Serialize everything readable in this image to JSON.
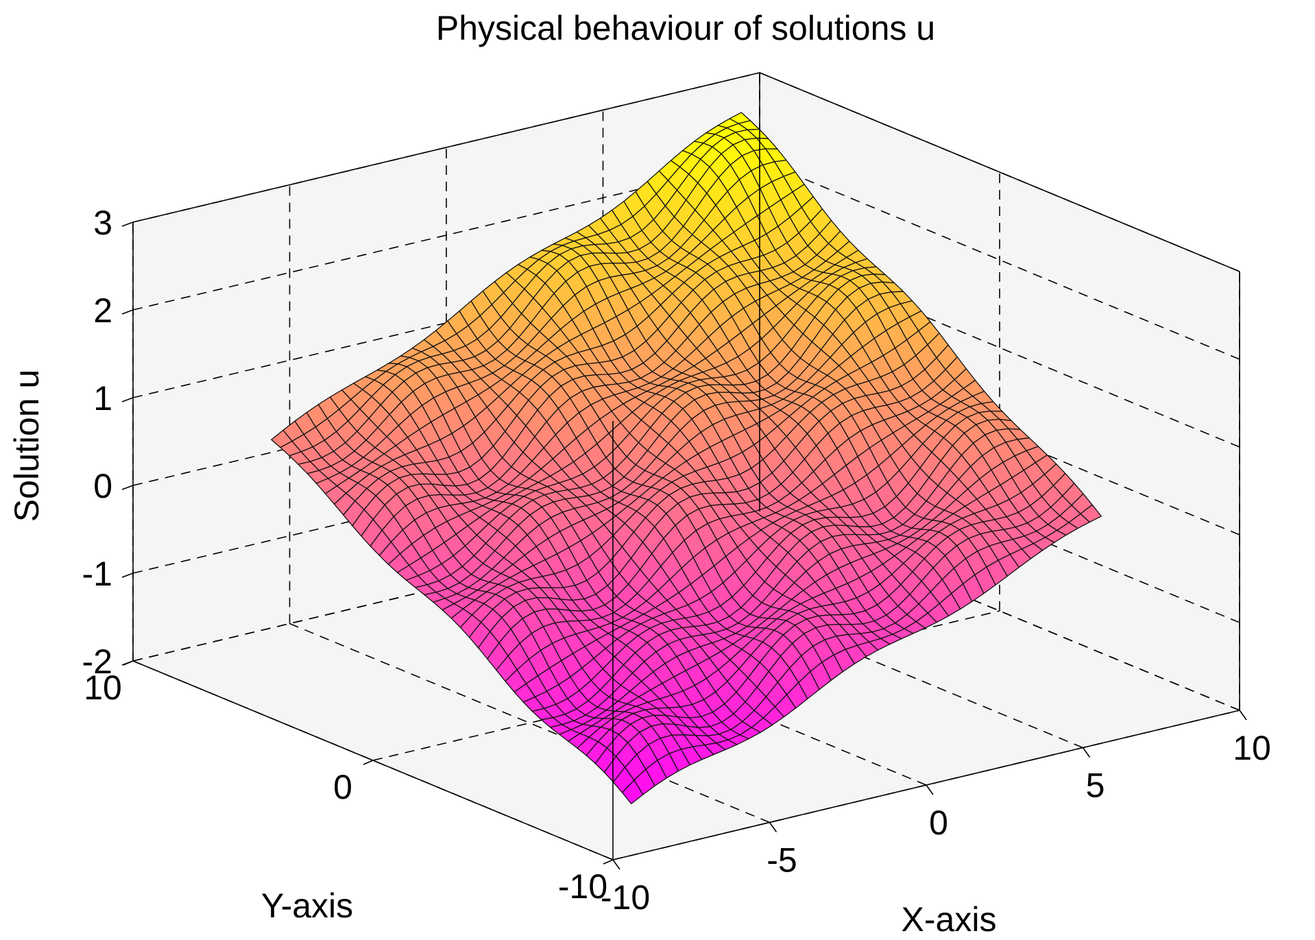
{
  "chart_data": {
    "type": "surface",
    "title": "Physical behaviour of solutions u",
    "xlabel": "X-axis",
    "ylabel": "Y-axis",
    "zlabel": "Solution u",
    "xlim": [
      -10,
      10
    ],
    "ylim": [
      -10,
      10
    ],
    "zlim": [
      -2,
      3
    ],
    "xticks": [
      -10,
      -5,
      0,
      5,
      10
    ],
    "yticks": [
      -10,
      0,
      10
    ],
    "zticks": [
      -2,
      -1,
      0,
      1,
      2,
      3
    ],
    "grid": true,
    "colormap": "spring",
    "colormap_low": "#ff00ff",
    "colormap_high": "#ffff00",
    "surface": {
      "x_range": [
        -7.5,
        7.5
      ],
      "y_range": [
        -7.5,
        7.5
      ],
      "grid_size": 41,
      "description_values": {
        "min_u_at": {
          "x": -7.5,
          "y": -7.5,
          "u": -1.9
        },
        "max_u_at": {
          "x": 7.5,
          "y": 7.5,
          "u": 3.0
        },
        "u_at_x_min_y_max": 0.55,
        "u_at_x_max_y_min": 0.1,
        "u_at_center": 0.5
      }
    }
  }
}
